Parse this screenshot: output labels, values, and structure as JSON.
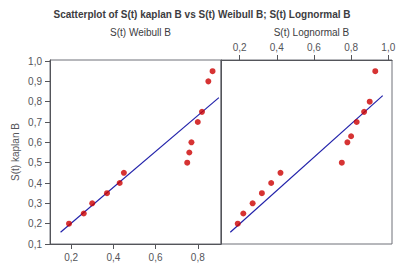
{
  "chart_data": [
    {
      "type": "scatter",
      "title": "Scatterplot of S(t) kaplan B vs S(t) Weibull B; S(t) Lognormal B",
      "subtitle": "S(t) Weibull B",
      "ylabel": "S(t) kaplan B",
      "xlim": [
        0.1,
        0.91
      ],
      "xticks": [
        {
          "value": 0.2,
          "label": "0,2"
        },
        {
          "value": 0.4,
          "label": "0,4"
        },
        {
          "value": 0.6,
          "label": "0,6"
        },
        {
          "value": 0.8,
          "label": "0,8"
        }
      ],
      "ylim": [
        0.1,
        1.005
      ],
      "yticks": [
        {
          "value": 0.1,
          "label": "0,1"
        },
        {
          "value": 0.2,
          "label": "0,2"
        },
        {
          "value": 0.3,
          "label": "0,3"
        },
        {
          "value": 0.4,
          "label": "0,4"
        },
        {
          "value": 0.5,
          "label": "0,5"
        },
        {
          "value": 0.6,
          "label": "0,6"
        },
        {
          "value": 0.7,
          "label": "0,7"
        },
        {
          "value": 0.8,
          "label": "0,8"
        },
        {
          "value": 0.9,
          "label": "0,9"
        },
        {
          "value": 1.0,
          "label": "1,0"
        }
      ],
      "grid": false,
      "series": [
        {
          "type": "scatter",
          "color": "#cc0000",
          "x": [
            0.19,
            0.26,
            0.3,
            0.37,
            0.43,
            0.45,
            0.75,
            0.76,
            0.77,
            0.8,
            0.82,
            0.85,
            0.87
          ],
          "values": [
            0.2,
            0.25,
            0.3,
            0.35,
            0.4,
            0.45,
            0.5,
            0.55,
            0.6,
            0.7,
            0.75,
            0.9,
            0.95
          ]
        },
        {
          "type": "line",
          "color": "#2222aa",
          "x": [
            0.15,
            0.9
          ],
          "values": [
            0.158,
            0.82
          ]
        }
      ]
    },
    {
      "type": "scatter",
      "subtitle": "S(t) Lognormal B",
      "xlim": [
        0.1,
        1.02
      ],
      "xticks": [
        {
          "value": 0.2,
          "label": "0,2"
        },
        {
          "value": 0.4,
          "label": "0,4"
        },
        {
          "value": 0.6,
          "label": "0,6"
        },
        {
          "value": 0.8,
          "label": "0,8"
        },
        {
          "value": 1.0,
          "label": "1,0"
        }
      ],
      "ylim": [
        0.1,
        1.005
      ],
      "grid": false,
      "tick_labels": "x",
      "series": [
        {
          "type": "scatter",
          "color": "#cc0000",
          "x": [
            0.19,
            0.22,
            0.27,
            0.32,
            0.37,
            0.42,
            0.75,
            0.78,
            0.8,
            0.83,
            0.87,
            0.9,
            0.93
          ],
          "values": [
            0.2,
            0.25,
            0.3,
            0.35,
            0.4,
            0.45,
            0.5,
            0.6,
            0.63,
            0.7,
            0.75,
            0.8,
            0.95
          ]
        },
        {
          "type": "line",
          "color": "#2222aa",
          "x": [
            0.15,
            0.97
          ],
          "values": [
            0.158,
            0.83
          ]
        }
      ]
    }
  ]
}
